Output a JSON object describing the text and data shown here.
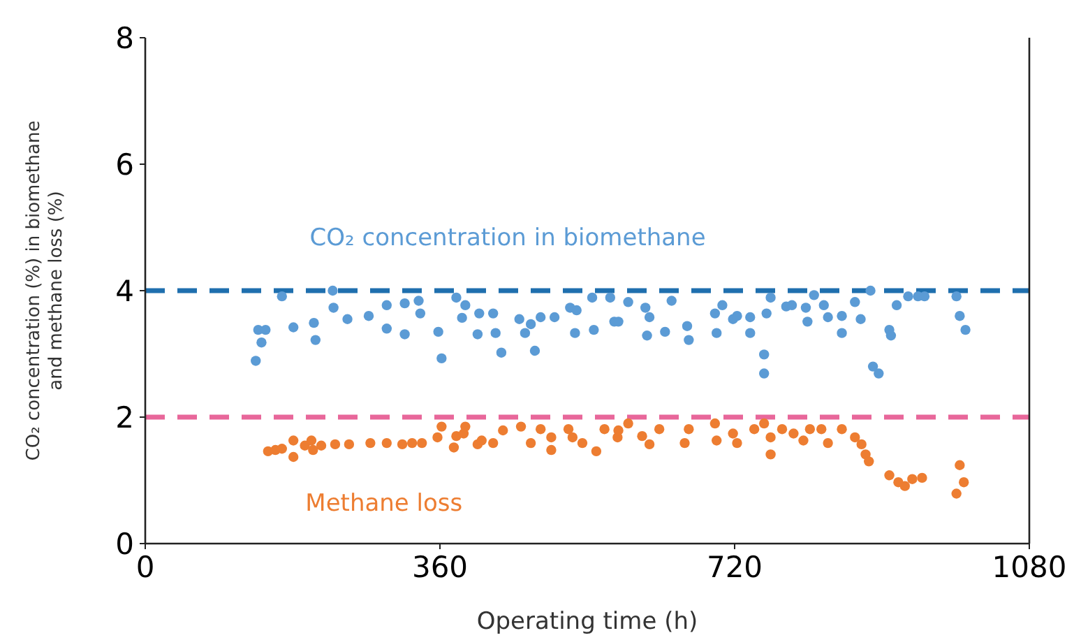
{
  "chart_data": {
    "type": "scatter",
    "xlabel": "Operating time (h)",
    "ylabel": "CO₂ concentration (%) in biomethane and methane loss (%)",
    "xlim": [
      0,
      1080
    ],
    "xticks": [
      0,
      360,
      720,
      1080
    ],
    "ylim": [
      0,
      8
    ],
    "yticks": [
      0,
      2,
      4,
      6,
      8
    ],
    "grid": false,
    "marker": "circle",
    "series": [
      {
        "name": "CO₂ concentration in biomethane",
        "color": "#5b9bd5",
        "x": [
          138,
          147,
          142,
          135,
          167,
          181,
          206,
          208,
          229,
          230,
          247,
          273,
          295,
          295,
          317,
          317,
          334,
          336,
          358,
          362,
          380,
          391,
          387,
          408,
          406,
          425,
          428,
          435,
          457,
          464,
          471,
          476,
          483,
          500,
          519,
          527,
          525,
          548,
          546,
          568,
          573,
          590,
          578,
          611,
          616,
          613,
          635,
          643,
          662,
          664,
          696,
          698,
          705,
          718,
          723,
          739,
          739,
          756,
          756,
          759,
          764,
          783,
          790,
          807,
          809,
          817,
          829,
          834,
          851,
          851,
          867,
          874,
          886,
          909,
          911,
          889,
          896,
          918,
          932,
          944,
          952,
          991,
          995,
          1002
        ],
        "values": [
          3.38,
          3.38,
          3.18,
          2.89,
          3.91,
          3.42,
          3.49,
          3.22,
          4.0,
          3.73,
          3.55,
          3.6,
          3.77,
          3.4,
          3.8,
          3.31,
          3.84,
          3.64,
          3.35,
          2.93,
          3.89,
          3.77,
          3.57,
          3.64,
          3.31,
          3.64,
          3.33,
          3.02,
          3.55,
          3.33,
          3.47,
          3.05,
          3.58,
          3.58,
          3.73,
          3.69,
          3.33,
          3.38,
          3.89,
          3.89,
          3.51,
          3.82,
          3.51,
          3.73,
          3.58,
          3.29,
          3.35,
          3.84,
          3.44,
          3.22,
          3.64,
          3.33,
          3.77,
          3.55,
          3.6,
          3.58,
          3.33,
          2.99,
          2.69,
          3.64,
          3.89,
          3.75,
          3.77,
          3.73,
          3.51,
          3.93,
          3.77,
          3.58,
          3.6,
          3.33,
          3.82,
          3.55,
          4.0,
          3.38,
          3.29,
          2.8,
          2.69,
          3.77,
          3.91,
          3.91,
          3.91,
          3.91,
          3.6,
          3.38
        ]
      },
      {
        "name": "Methane loss",
        "color": "#ed7d31",
        "x": [
          150,
          159,
          167,
          181,
          181,
          195,
          203,
          205,
          215,
          232,
          249,
          275,
          295,
          314,
          326,
          338,
          357,
          362,
          377,
          380,
          389,
          391,
          406,
          411,
          425,
          437,
          459,
          471,
          483,
          496,
          496,
          517,
          522,
          534,
          551,
          561,
          577,
          590,
          578,
          607,
          616,
          628,
          659,
          664,
          696,
          698,
          718,
          723,
          744,
          756,
          764,
          764,
          778,
          792,
          804,
          812,
          826,
          834,
          851,
          867,
          875,
          880,
          884,
          909,
          920,
          928,
          937,
          949,
          995,
          1000,
          991
        ],
        "values": [
          1.46,
          1.48,
          1.5,
          1.63,
          1.37,
          1.55,
          1.63,
          1.48,
          1.55,
          1.57,
          1.57,
          1.59,
          1.59,
          1.57,
          1.59,
          1.59,
          1.68,
          1.85,
          1.52,
          1.7,
          1.74,
          1.85,
          1.57,
          1.63,
          1.59,
          1.79,
          1.85,
          1.59,
          1.81,
          1.68,
          1.48,
          1.81,
          1.68,
          1.59,
          1.46,
          1.81,
          1.68,
          1.9,
          1.79,
          1.7,
          1.57,
          1.81,
          1.59,
          1.81,
          1.9,
          1.63,
          1.74,
          1.59,
          1.81,
          1.9,
          1.68,
          1.41,
          1.81,
          1.74,
          1.63,
          1.81,
          1.81,
          1.59,
          1.81,
          1.68,
          1.57,
          1.41,
          1.3,
          1.08,
          0.97,
          0.91,
          1.02,
          1.04,
          1.24,
          0.97,
          0.79
        ]
      }
    ],
    "ref_lines": [
      {
        "axis": "y",
        "value": 4,
        "color": "#1f6fae",
        "line_style": "dashed"
      },
      {
        "axis": "y",
        "value": 2,
        "color": "#e8679a",
        "line_style": "dashed"
      }
    ]
  }
}
